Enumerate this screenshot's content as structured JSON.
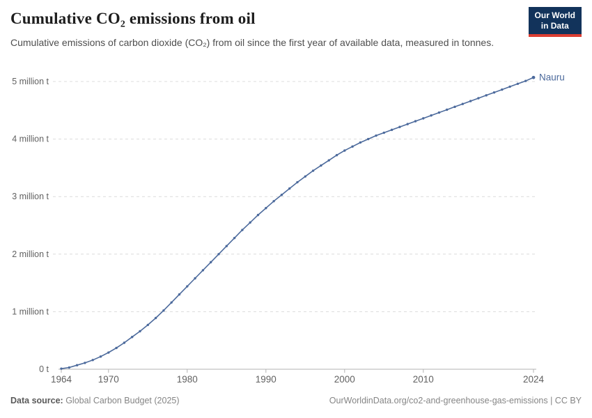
{
  "header": {
    "title": "Cumulative CO₂ emissions from oil",
    "subtitle": "Cumulative emissions of carbon dioxide (CO₂) from oil since the first year of available data, measured in tonnes.",
    "logo": {
      "line1": "Our World",
      "line2": "in Data"
    }
  },
  "chart_data": {
    "type": "line",
    "title": "Cumulative CO₂ emissions from oil",
    "xlabel": "",
    "ylabel": "",
    "unit": "million t",
    "xlim": [
      1964,
      2024
    ],
    "ylim": [
      0,
      5.15
    ],
    "grid": "horizontal-dashed",
    "legend_position": "end-of-line-label",
    "x_ticks": [
      1964,
      1970,
      1980,
      1990,
      2000,
      2010,
      2024
    ],
    "y_ticks": [
      {
        "value": 0,
        "label": "0 t"
      },
      {
        "value": 1,
        "label": "1 million t"
      },
      {
        "value": 2,
        "label": "2 million t"
      },
      {
        "value": 3,
        "label": "3 million t"
      },
      {
        "value": 4,
        "label": "4 million t"
      },
      {
        "value": 5,
        "label": "5 million t"
      }
    ],
    "x": [
      1964,
      1965,
      1966,
      1967,
      1968,
      1969,
      1970,
      1971,
      1972,
      1973,
      1974,
      1975,
      1976,
      1977,
      1978,
      1979,
      1980,
      1981,
      1982,
      1983,
      1984,
      1985,
      1986,
      1987,
      1988,
      1989,
      1990,
      1991,
      1992,
      1993,
      1994,
      1995,
      1996,
      1997,
      1998,
      1999,
      2000,
      2001,
      2002,
      2003,
      2004,
      2005,
      2006,
      2007,
      2008,
      2009,
      2010,
      2011,
      2012,
      2013,
      2014,
      2015,
      2016,
      2017,
      2018,
      2019,
      2020,
      2021,
      2022,
      2023,
      2024
    ],
    "series": [
      {
        "name": "Nauru",
        "color": "#4c6a9c",
        "values": [
          0.01,
          0.03,
          0.07,
          0.11,
          0.16,
          0.22,
          0.29,
          0.37,
          0.46,
          0.56,
          0.66,
          0.77,
          0.89,
          1.02,
          1.16,
          1.3,
          1.44,
          1.58,
          1.72,
          1.86,
          2.0,
          2.14,
          2.28,
          2.42,
          2.55,
          2.68,
          2.8,
          2.92,
          3.03,
          3.14,
          3.25,
          3.35,
          3.45,
          3.54,
          3.63,
          3.72,
          3.8,
          3.87,
          3.94,
          4.0,
          4.06,
          4.11,
          4.16,
          4.21,
          4.26,
          4.31,
          4.36,
          4.41,
          4.46,
          4.51,
          4.56,
          4.61,
          4.66,
          4.71,
          4.76,
          4.81,
          4.86,
          4.91,
          4.96,
          5.01,
          5.07
        ]
      }
    ]
  },
  "footer": {
    "source_label": "Data source:",
    "source_value": " Global Carbon Budget (2025)",
    "link": "OurWorldinData.org/co2-and-greenhouse-gas-emissions | CC BY"
  },
  "colors": {
    "line": "#4c6a9c",
    "grid": "#dcdcdc",
    "axis": "#b3b3b3",
    "tick_label": "#616161",
    "title": "#1d1d1d",
    "subtitle": "#4e4e4e",
    "logo_bg": "#12335b",
    "logo_accent": "#dc3e32"
  }
}
